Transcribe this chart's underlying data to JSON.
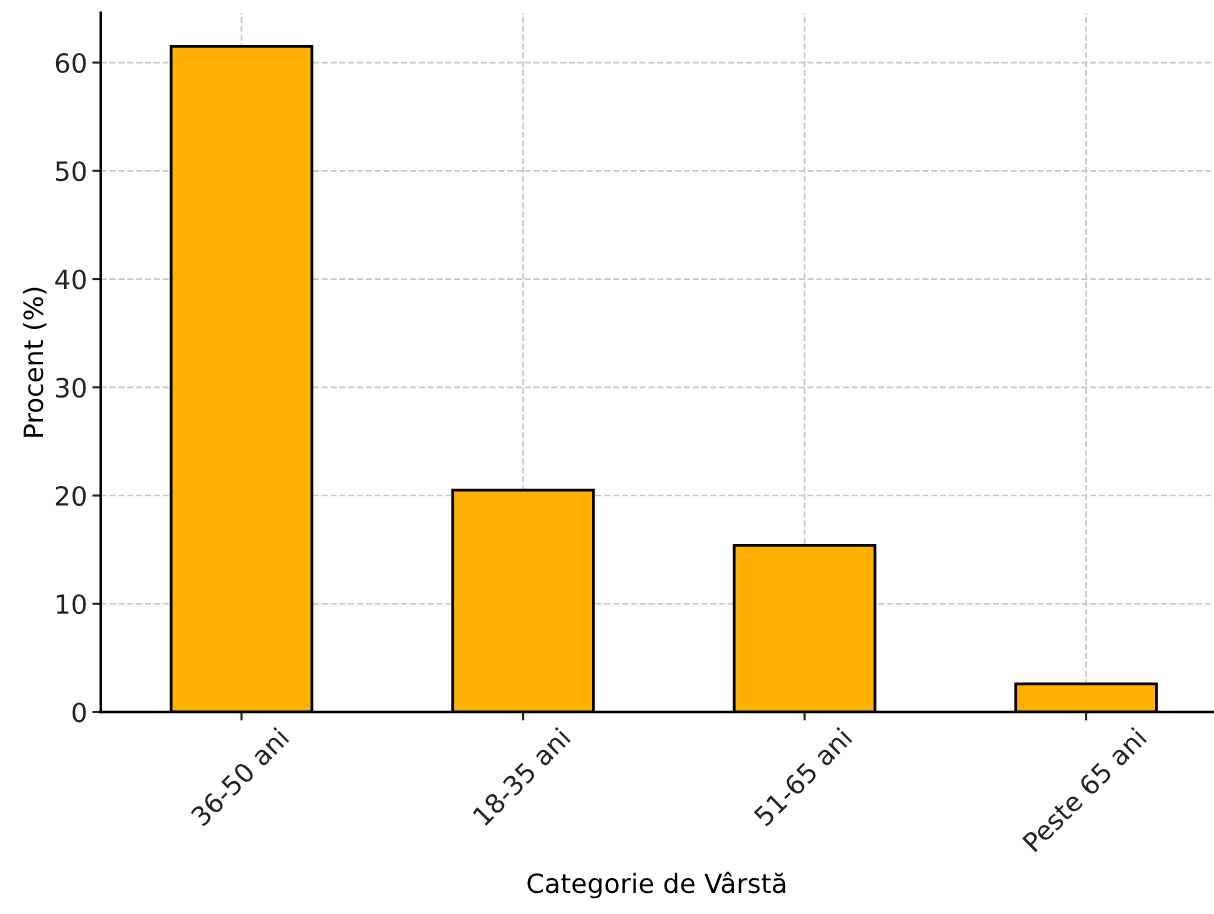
{
  "chart_data": {
    "type": "bar",
    "xlabel": "Categorie de Vârstă",
    "ylabel": "Procent (%)",
    "categories": [
      "36-50 ani",
      "18-35 ani",
      "51-65 ani",
      "Peste 65 ani"
    ],
    "values": [
      61.5,
      20.5,
      15.4,
      2.6
    ],
    "color": "#ffb000",
    "ylim": [
      0,
      64.6
    ],
    "yticks": [
      0,
      10,
      20,
      30,
      40,
      50,
      60
    ],
    "grid": true
  }
}
